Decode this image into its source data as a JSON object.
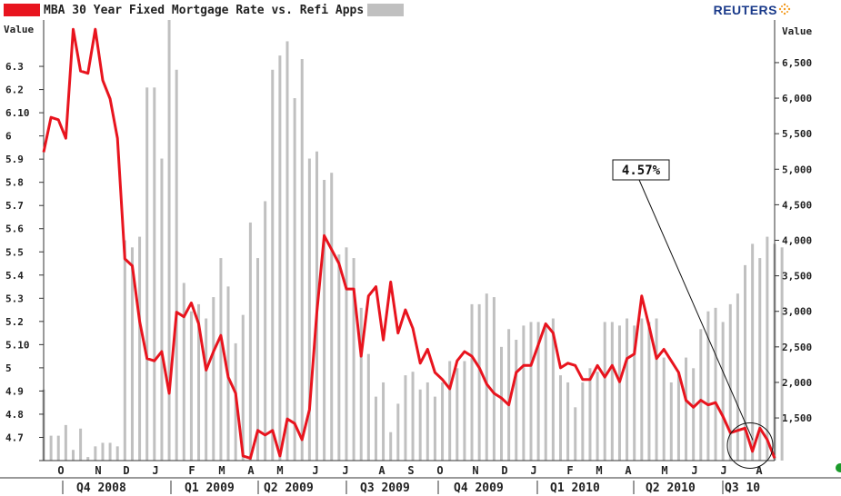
{
  "header": {
    "title": "MBA 30 Year Fixed Mortgage Rate vs. Refi Apps",
    "brand": "REUTERS"
  },
  "chart_data": {
    "type": "line",
    "title": "MBA 30 Year Fixed Mortgage Rate vs. Refi Apps",
    "left_axis": {
      "label": "Value",
      "ylim": [
        4.6,
        6.5
      ],
      "tick_labels": [
        "4.7",
        "4.8",
        "4.9",
        "5",
        "5.10",
        "5.2",
        "5.3",
        "5.4",
        "5.5",
        "5.6",
        "5.7",
        "5.8",
        "5.9",
        "6",
        "6.10",
        "6.2",
        "6.3"
      ]
    },
    "right_axis": {
      "label": "Value",
      "ylim": [
        900,
        7100
      ],
      "tick_labels": [
        "1,500",
        "2,000",
        "2,500",
        "3,000",
        "3,500",
        "4,000",
        "4,500",
        "5,000",
        "5,500",
        "6,000",
        "6,500"
      ]
    },
    "x_month_labels": [
      "O",
      "N",
      "D",
      "J",
      "F",
      "M",
      "A",
      "M",
      "J",
      "J",
      "A",
      "S",
      "O",
      "N",
      "D",
      "J",
      "F",
      "M",
      "A",
      "M",
      "J",
      "J",
      "A"
    ],
    "x_quarter_labels": [
      "Q4 2008",
      "Q1 2009",
      "Q2 2009",
      "Q3 2009",
      "Q4 2009",
      "Q1 2010",
      "Q2 2010",
      "Q3 10"
    ],
    "annotation": "4.57%",
    "grid": false,
    "series": [
      {
        "name": "MBA 30 Year Fixed Mortgage Rate",
        "type": "line",
        "axis": "left",
        "color": "#e8141e",
        "values": [
          5.93,
          6.08,
          6.07,
          5.99,
          6.46,
          6.28,
          6.27,
          6.46,
          6.24,
          6.16,
          5.99,
          5.47,
          5.44,
          5.2,
          5.04,
          5.03,
          5.07,
          4.89,
          5.24,
          5.22,
          5.28,
          5.19,
          4.99,
          5.07,
          5.14,
          4.96,
          4.89,
          4.62,
          4.61,
          4.73,
          4.71,
          4.73,
          4.62,
          4.78,
          4.76,
          4.69,
          4.82,
          5.24,
          5.57,
          5.51,
          5.45,
          5.34,
          5.34,
          5.05,
          5.31,
          5.35,
          5.12,
          5.37,
          5.15,
          5.25,
          5.17,
          5.02,
          5.08,
          4.98,
          4.95,
          4.91,
          5.03,
          5.07,
          5.05,
          5.0,
          4.93,
          4.89,
          4.87,
          4.84,
          4.98,
          5.01,
          5.01,
          5.1,
          5.19,
          5.15,
          5.0,
          5.02,
          5.01,
          4.95,
          4.95,
          5.01,
          4.96,
          5.01,
          4.94,
          5.04,
          5.06,
          5.31,
          5.18,
          5.04,
          5.08,
          5.03,
          4.98,
          4.86,
          4.83,
          4.86,
          4.84,
          4.85,
          4.79,
          4.72,
          4.73,
          4.74,
          4.64,
          4.74,
          4.69,
          4.61
        ]
      },
      {
        "name": "Refi Apps",
        "type": "bar",
        "axis": "right",
        "color": "#c0c0c0",
        "values": [
          1900,
          1250,
          1250,
          1400,
          1050,
          1350,
          950,
          1100,
          1150,
          1150,
          1100,
          4000,
          3900,
          4050,
          6150,
          6150,
          5150,
          7100,
          6400,
          3400,
          3000,
          3100,
          2900,
          3200,
          3750,
          3350,
          2550,
          2950,
          4250,
          3750,
          4550,
          6400,
          6600,
          6800,
          6000,
          6550,
          5150,
          5250,
          4850,
          4950,
          3800,
          3900,
          3750,
          3050,
          2400,
          1800,
          2000,
          1300,
          1700,
          2100,
          2150,
          1900,
          2000,
          1800,
          2000,
          2300,
          2200,
          2300,
          3100,
          3100,
          3250,
          3200,
          2500,
          2750,
          2600,
          2800,
          2850,
          2850,
          2800,
          2900,
          2100,
          2000,
          1650,
          2000,
          2200,
          2150,
          2850,
          2850,
          2800,
          2900,
          2800,
          2900,
          2850,
          2900,
          2350,
          2000,
          2150,
          2350,
          2200,
          2750,
          3000,
          3050,
          2850,
          3100,
          3250,
          3650,
          3950,
          3750,
          4050,
          3950,
          3900
        ]
      }
    ]
  }
}
